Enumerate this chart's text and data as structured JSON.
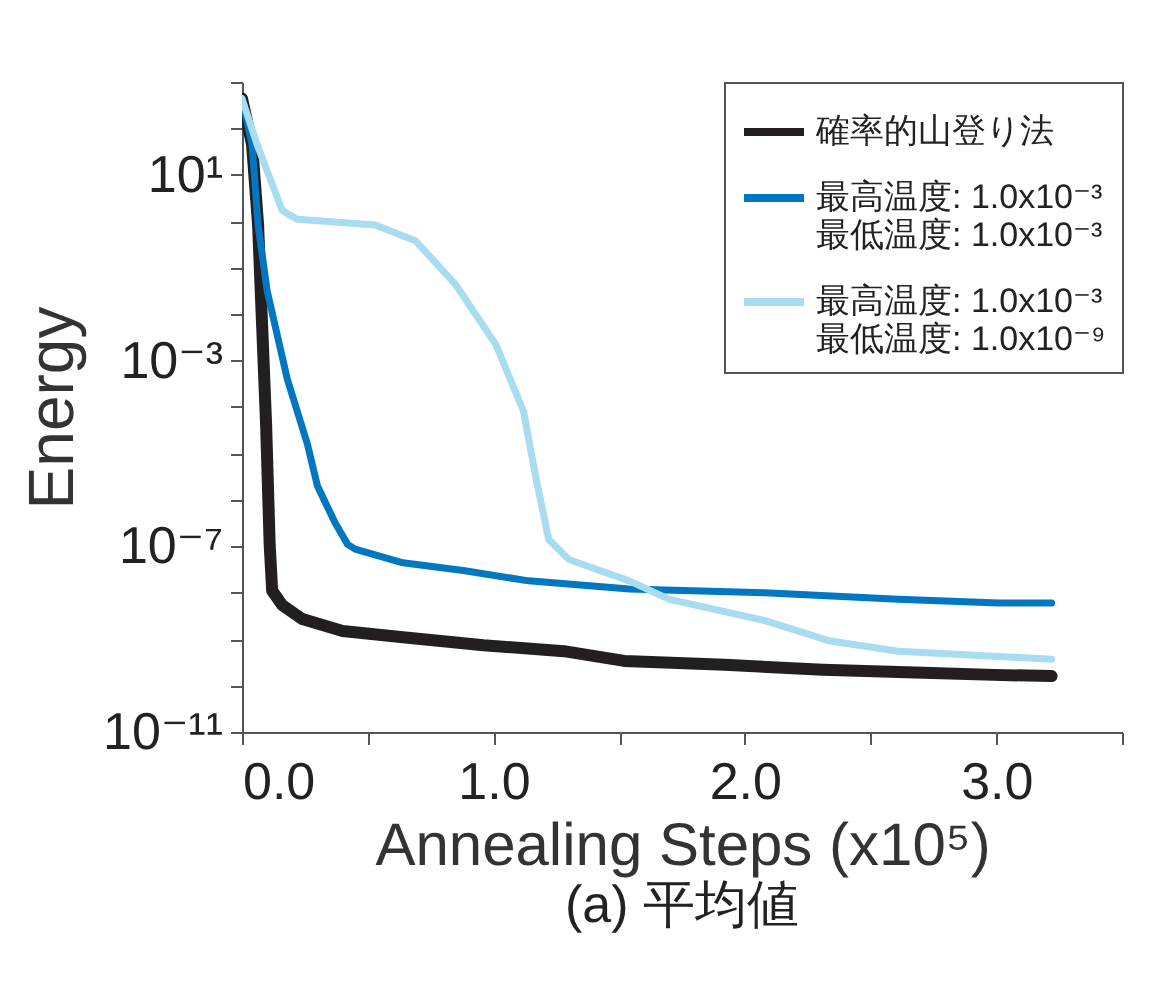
{
  "chart_data": {
    "type": "line",
    "title": "(a) 平均値",
    "xlabel": "Annealing Steps (x10⁵)",
    "ylabel": "Energy",
    "log": "y",
    "grid": false,
    "legend": "top right",
    "marker": "none",
    "line_style": "solid",
    "xlim": [
      0,
      3.5
    ],
    "xticks": [
      {
        "value": 0,
        "label": "0.0"
      },
      {
        "value": 0.5,
        "label": null
      },
      {
        "value": 1,
        "label": "1.0"
      },
      {
        "value": 1.5,
        "label": null
      },
      {
        "value": 2,
        "label": "2.0"
      },
      {
        "value": 2.5,
        "label": null
      },
      {
        "value": 3,
        "label": "3.0"
      },
      {
        "value": 3.5,
        "label": null
      }
    ],
    "ylim": [
      1e-11,
      1000
    ],
    "yticks": [
      {
        "value": 1e-11,
        "label": "10⁻¹¹"
      },
      {
        "value": 1e-10,
        "label": null
      },
      {
        "value": 1e-09,
        "label": null
      },
      {
        "value": 1e-08,
        "label": null
      },
      {
        "value": 1e-07,
        "label": "10⁻⁷"
      },
      {
        "value": 1e-06,
        "label": null
      },
      {
        "value": 1e-05,
        "label": null
      },
      {
        "value": 0.0001,
        "label": null
      },
      {
        "value": 0.001,
        "label": "10⁻³"
      },
      {
        "value": 0.01,
        "label": null
      },
      {
        "value": 0.1,
        "label": null
      },
      {
        "value": 1,
        "label": null
      },
      {
        "value": 10,
        "label": "10¹"
      },
      {
        "value": 100,
        "label": null
      },
      {
        "value": 1000,
        "label": null
      }
    ],
    "series": [
      {
        "name": "確率的山登り法",
        "color": "#231f20",
        "x": [
          0,
          0.04,
          0.064,
          0.096,
          0.11,
          0.12,
          0.16,
          0.24,
          0.4,
          0.64,
          0.96,
          1.28,
          1.52,
          1.92,
          2.31,
          2.71,
          2.99,
          3.22
        ],
        "values": [
          440,
          45,
          0.83,
          4e-05,
          1.1e-07,
          1.1e-08,
          5.4e-09,
          2.7e-09,
          1.5e-09,
          1.1e-09,
          7.4e-10,
          5.5e-10,
          3.4e-10,
          2.8e-10,
          2.2e-10,
          1.9e-10,
          1.7e-10,
          1.6e-10
        ]
      },
      {
        "name": "最高温度: 1.0x10⁻³\n最低温度: 1.0x10⁻³",
        "color": "#0077c0",
        "x": [
          0,
          0.04,
          0.064,
          0.1,
          0.18,
          0.26,
          0.3,
          0.37,
          0.42,
          0.45,
          0.64,
          0.88,
          1.14,
          1.54,
          2.08,
          2.61,
          3.01,
          3.22
        ],
        "values": [
          440,
          45,
          0.83,
          0.032,
          0.0004,
          1.6e-05,
          2e-06,
          3.2e-07,
          1.1e-07,
          8.7e-08,
          4.4e-08,
          3e-08,
          1.8e-08,
          1.2e-08,
          1e-08,
          7.2e-09,
          6e-09,
          6e-09
        ]
      },
      {
        "name": "最高温度: 1.0x10⁻³\n最低温度: 1.0x10⁻⁹",
        "color": "#a8dcf0",
        "x": [
          0,
          0.06,
          0.16,
          0.22,
          0.53,
          0.69,
          0.85,
          1.01,
          1.12,
          1.17,
          1.22,
          1.3,
          1.54,
          1.7,
          2.08,
          2.34,
          2.61,
          3.22
        ],
        "values": [
          440,
          45,
          1.7,
          1.1,
          0.83,
          0.38,
          0.043,
          0.0022,
          8e-05,
          2.8e-06,
          1.4e-07,
          5.2e-08,
          1.8e-08,
          7.2e-09,
          2.5e-09,
          9.1e-10,
          5.5e-10,
          3.7e-10
        ]
      }
    ]
  }
}
